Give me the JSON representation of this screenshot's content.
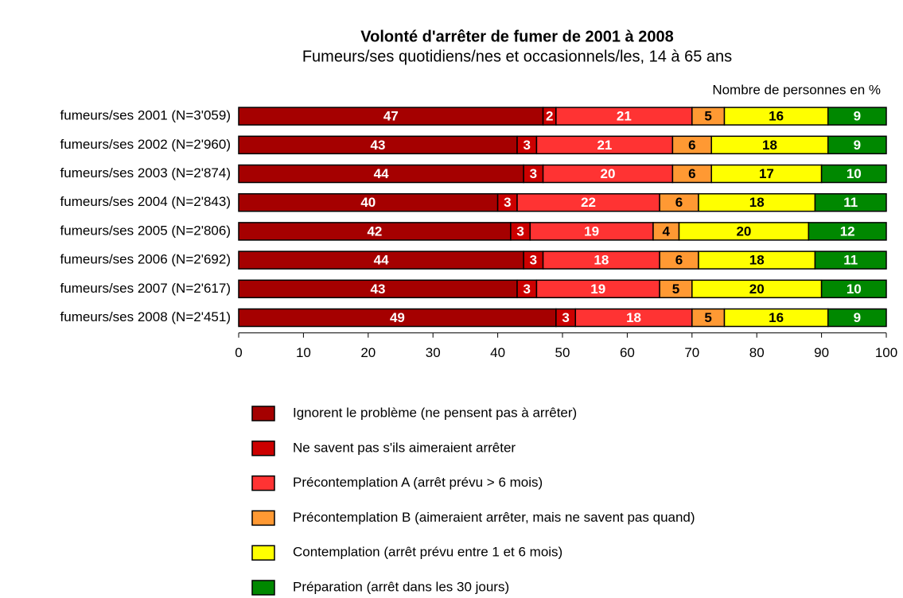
{
  "chart_data": {
    "type": "stacked-barh",
    "title": "Volonté d'arrêter de fumer de 2001 à 2008",
    "subtitle": "Fumeurs/ses quotidiens/nes et occasionnels/les, 14 à 65 ans",
    "x_axis_label": "Nombre de personnes en %",
    "categories": [
      "fumeurs/ses 2001 (N=3'059)",
      "fumeurs/ses 2002 (N=2'960)",
      "fumeurs/ses 2003 (N=2'874)",
      "fumeurs/ses 2004 (N=2'843)",
      "fumeurs/ses 2005 (N=2'806)",
      "fumeurs/ses 2006 (N=2'692)",
      "fumeurs/ses 2007 (N=2'617)",
      "fumeurs/ses 2008 (N=2'451)"
    ],
    "series": [
      {
        "name": "Ignorent le problème (ne pensent pas à arrêter)",
        "color": "#a50000",
        "label_color": "#ffffff",
        "values": [
          47,
          43,
          44,
          40,
          42,
          44,
          43,
          49
        ]
      },
      {
        "name": "Ne savent pas s'ils aimeraient arrêter",
        "color": "#cc0000",
        "label_color": "#ffffff",
        "values": [
          2,
          3,
          3,
          3,
          3,
          3,
          3,
          3
        ]
      },
      {
        "name": "Précontemplation A (arrêt prévu > 6 mois)",
        "color": "#ff3333",
        "label_color": "#ffffff",
        "values": [
          21,
          21,
          20,
          22,
          19,
          18,
          19,
          18
        ]
      },
      {
        "name": "Précontemplation B (aimeraient arrêter, mais ne savent pas quand)",
        "color": "#ff9933",
        "label_color": "#000000",
        "values": [
          5,
          6,
          6,
          6,
          4,
          6,
          5,
          5
        ]
      },
      {
        "name": "Contemplation (arrêt prévu entre 1 et 6 mois)",
        "color": "#ffff00",
        "label_color": "#000000",
        "values": [
          16,
          18,
          17,
          18,
          20,
          18,
          20,
          16
        ]
      },
      {
        "name": "Préparation (arrêt dans les 30 jours)",
        "color": "#008800",
        "label_color": "#ffffff",
        "values": [
          9,
          9,
          10,
          11,
          12,
          11,
          10,
          9
        ]
      }
    ],
    "xlim": [
      0,
      100
    ],
    "xticks": [
      0,
      10,
      20,
      30,
      40,
      50,
      60,
      70,
      80,
      90,
      100
    ]
  }
}
